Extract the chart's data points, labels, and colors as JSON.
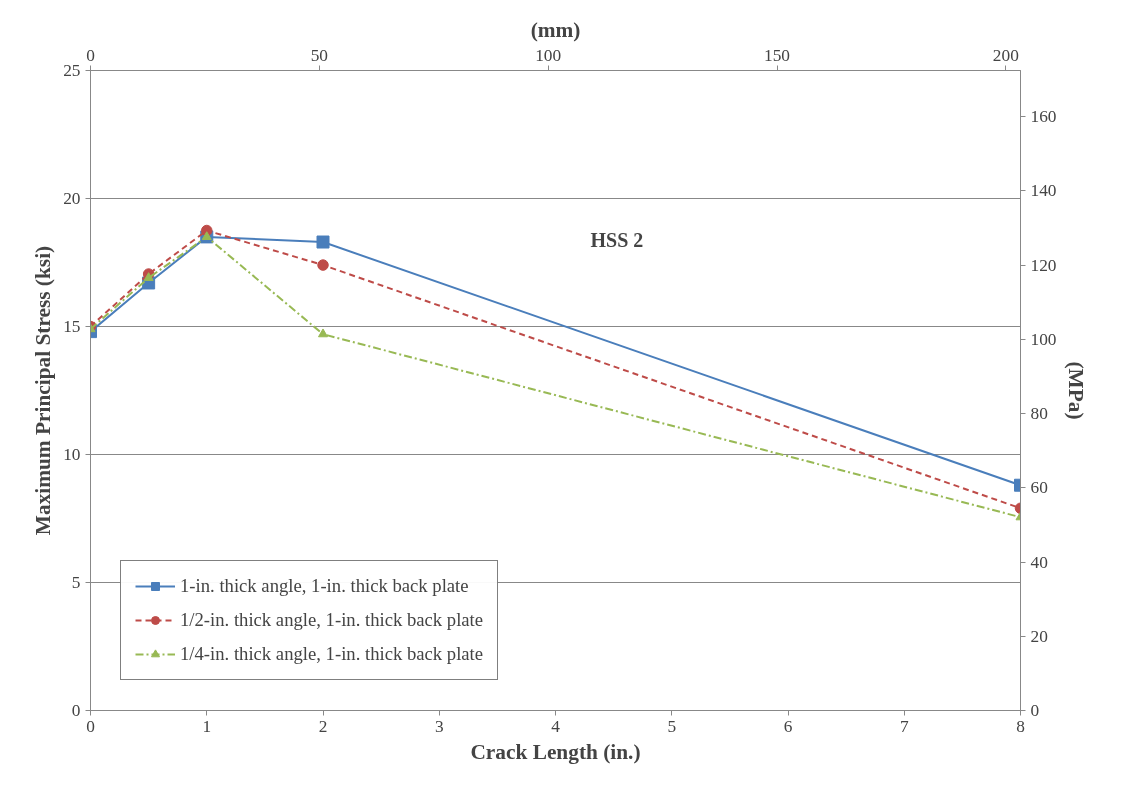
{
  "chart_data": {
    "type": "line",
    "xlabel": "Crack Length (in.)",
    "ylabel": "Maximum Principal Stress (ksi)",
    "y2label": "(MPa)",
    "x2label": "(mm)",
    "annotations": [
      "HSS 2"
    ],
    "x": [
      0,
      0.5,
      1,
      2,
      8
    ],
    "series": [
      {
        "name": "1-in. thick angle, 1-in. thick back plate",
        "color": "#4a7ebb",
        "marker": "square",
        "line_style": "solid",
        "values": [
          14.8,
          16.7,
          18.5,
          18.3,
          8.8
        ]
      },
      {
        "name": "1/2-in. thick angle, 1-in. thick back plate",
        "color": "#be4b48",
        "marker": "circle",
        "line_style": "dashed",
        "values": [
          15.0,
          17.05,
          18.75,
          17.4,
          7.9
        ]
      },
      {
        "name": "1/4-in. thick angle, 1-in. thick back plate",
        "color": "#98b954",
        "marker": "triangle",
        "line_style": "dashdot",
        "values": [
          14.9,
          16.9,
          18.5,
          14.7,
          7.55
        ]
      }
    ],
    "xlim": [
      0,
      8
    ],
    "xticks": [
      0,
      1,
      2,
      3,
      4,
      5,
      6,
      7,
      8
    ],
    "ylim": [
      0,
      25
    ],
    "yticks": [
      0,
      5,
      10,
      15,
      20,
      25
    ],
    "y2lim": [
      0,
      172.4
    ],
    "y2ticks": [
      0,
      20,
      40,
      60,
      80,
      100,
      120,
      140,
      160
    ],
    "x2lim": [
      0,
      203.2
    ],
    "x2ticks": [
      0,
      50,
      100,
      150,
      200
    ],
    "grid": "y",
    "legend": "bottom left"
  }
}
